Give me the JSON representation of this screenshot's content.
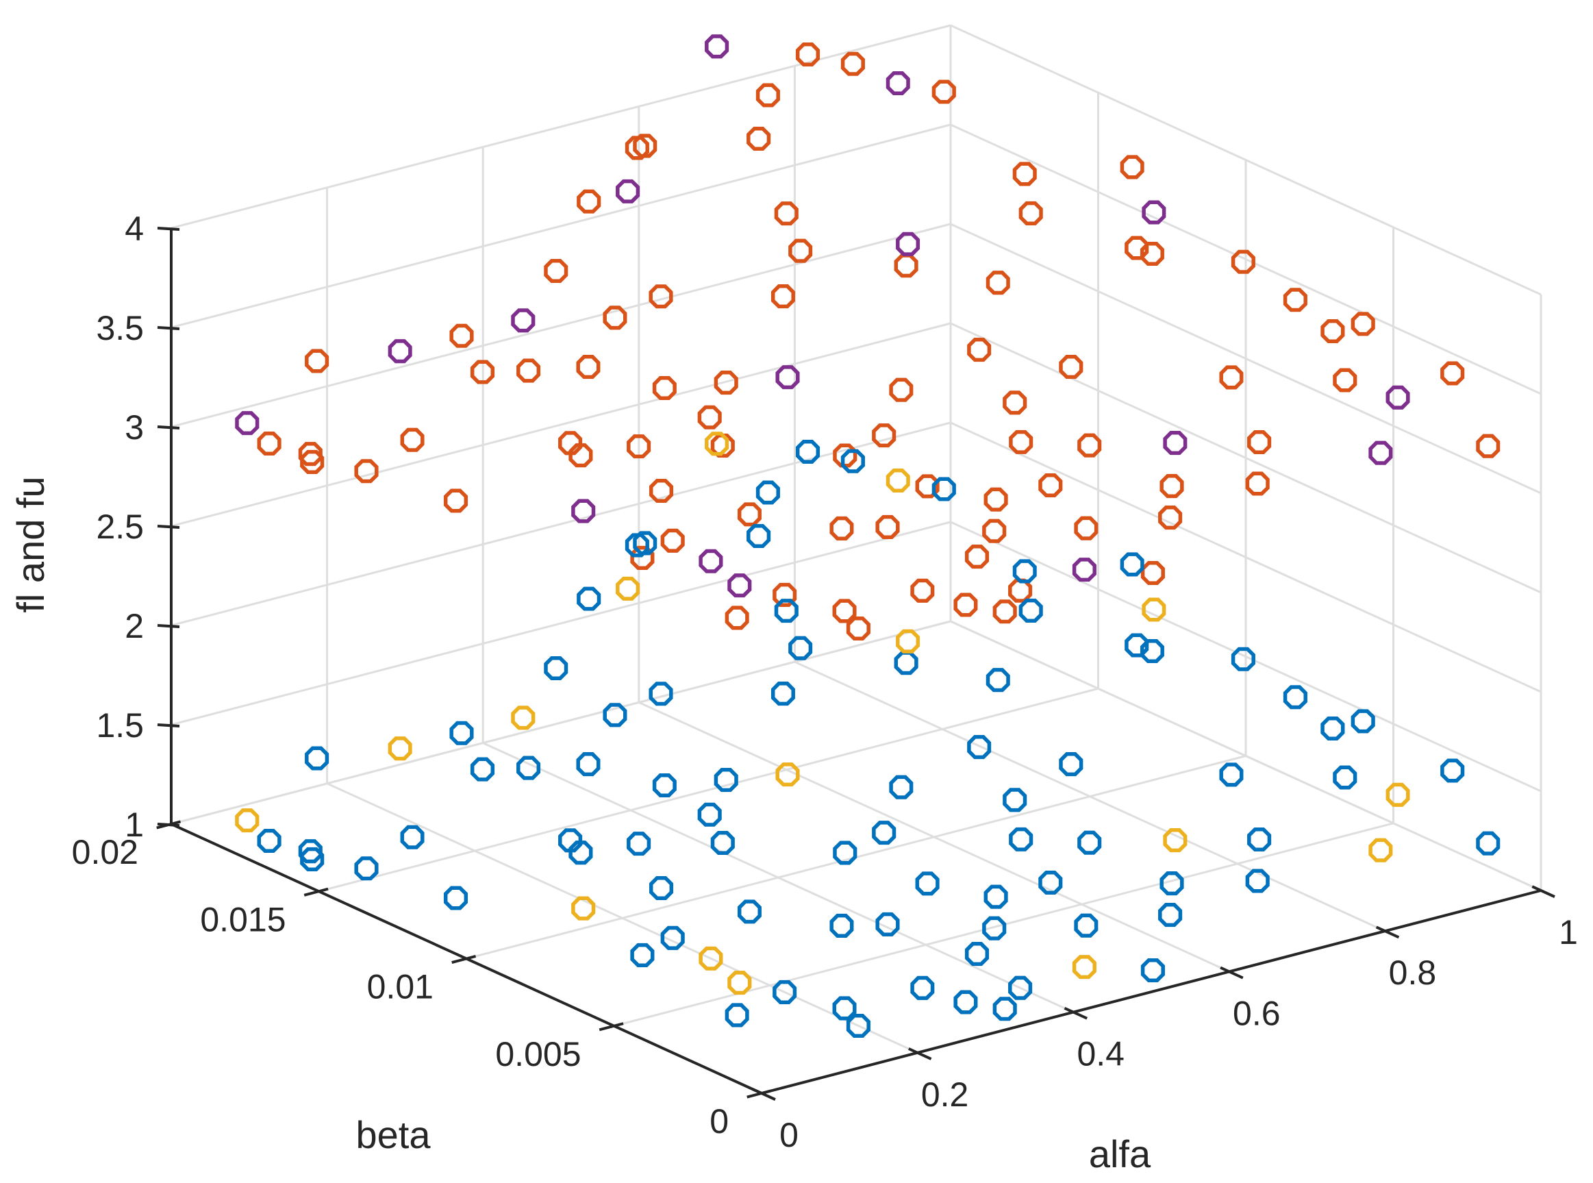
{
  "chart_data": {
    "type": "scatter3d",
    "xlabel": "alfa",
    "ylabel": "beta",
    "zlabel": "fl and fu",
    "xlim": [
      0,
      1
    ],
    "ylim": [
      0,
      0.02
    ],
    "zlim": [
      1,
      4
    ],
    "x_ticks": [
      0,
      0.2,
      0.4,
      0.6,
      0.8,
      1
    ],
    "x_tick_labels": [
      "0",
      "0.2",
      "0.4",
      "0.6",
      "0.8",
      "1"
    ],
    "y_ticks": [
      0,
      0.005,
      0.01,
      0.015,
      0.02
    ],
    "y_tick_labels": [
      "0",
      "0.005",
      "0.01",
      "0.015",
      "0.02"
    ],
    "z_ticks": [
      1,
      1.5,
      2,
      2.5,
      3,
      3.5,
      4
    ],
    "z_tick_labels": [
      "1",
      "1.5",
      "2",
      "2.5",
      "3",
      "3.5",
      "4"
    ],
    "grid": true,
    "colors": {
      "fu_main": "#D95319",
      "fu_alt": "#7E2F8E",
      "fl_main": "#0072BD",
      "fl_alt": "#EDB120",
      "axis": "#262626",
      "grid": "#DEDEDE"
    },
    "points": [
      {
        "alfa": 0.033,
        "beta": 0.0183,
        "fl": 1.1,
        "fu": 3.1,
        "alt": true
      },
      {
        "alfa": 0.05,
        "beta": 0.018,
        "fl": 1.0,
        "fu": 3.0,
        "alt": false
      },
      {
        "alfa": 0.052,
        "beta": 0.0166,
        "fl": 1.0,
        "fu": 3.0,
        "alt": false
      },
      {
        "alfa": 0.065,
        "beta": 0.017,
        "fl": 1.0,
        "fu": 3.0,
        "alt": false
      },
      {
        "alfa": 0.08,
        "beta": 0.0155,
        "fl": 1.0,
        "fu": 3.0,
        "alt": false
      },
      {
        "alfa": 0.12,
        "beta": 0.015,
        "fl": 1.15,
        "fu": 3.15,
        "alt": false
      },
      {
        "alfa": 0.1,
        "beta": 0.013,
        "fl": 1.0,
        "fu": 3.0,
        "alt": false
      },
      {
        "alfa": 0.18,
        "beta": 0.017,
        "fl": 1.4,
        "fu": 3.4,
        "alt": true
      },
      {
        "alfa": 0.21,
        "beta": 0.015,
        "fl": 1.4,
        "fu": 3.4,
        "alt": false
      },
      {
        "alfa": 0.25,
        "beta": 0.0145,
        "fl": 1.4,
        "fu": 3.4,
        "alt": false
      },
      {
        "alfa": 0.23,
        "beta": 0.0122,
        "fl": 1.15,
        "fu": 3.15,
        "alt": false
      },
      {
        "alfa": 0.15,
        "beta": 0.008,
        "fl": 1.0,
        "fu": 3.0,
        "alt": false
      },
      {
        "alfa": 0.12,
        "beta": 0.004,
        "fl": 1.0,
        "fu": 3.0,
        "alt": false
      },
      {
        "alfa": 0.15,
        "beta": 0.01,
        "fl": 1.1,
        "fu": 3.1,
        "alt": true
      },
      {
        "alfa": 0.17,
        "beta": 0.0075,
        "fl": 1.1,
        "fu": 3.1,
        "alt": false
      },
      {
        "alfa": 0.18,
        "beta": 0.0055,
        "fl": 1.0,
        "fu": 3.0,
        "alt": true
      },
      {
        "alfa": 0.2,
        "beta": 0.0045,
        "fl": 1.0,
        "fu": 3.0,
        "alt": false
      },
      {
        "alfa": 0.2,
        "beta": 0.002,
        "fl": 1.0,
        "fu": 3.0,
        "alt": false
      },
      {
        "alfa": 0.22,
        "beta": 0.003,
        "fl": 1.0,
        "fu": 3.0,
        "alt": false
      },
      {
        "alfa": 0.2,
        "beta": 0.007,
        "fl": 1.0,
        "fu": 3.0,
        "alt": true
      },
      {
        "alfa": 0.19,
        "beta": 0.0115,
        "fl": 1.3,
        "fu": 3.3,
        "alt": false
      },
      {
        "alfa": 0.24,
        "beta": 0.0105,
        "fl": 1.3,
        "fu": 3.3,
        "alt": false
      },
      {
        "alfa": 0.27,
        "beta": 0.013,
        "fl": 1.5,
        "fu": 3.5,
        "alt": false
      },
      {
        "alfa": 0.25,
        "beta": 0.01,
        "fl": 1.1,
        "fu": 3.1,
        "alt": false
      },
      {
        "alfa": 0.28,
        "beta": 0.0078,
        "fl": 1.1,
        "fu": 3.1,
        "alt": false
      },
      {
        "alfa": 0.33,
        "beta": 0.012,
        "fl": 1.4,
        "fu": 3.4,
        "alt": false
      },
      {
        "alfa": 0.35,
        "beta": 0.011,
        "fl": 1.3,
        "fu": 3.3,
        "alt": false
      },
      {
        "alfa": 0.31,
        "beta": 0.0095,
        "fl": 1.3,
        "fu": 3.3,
        "alt": false
      },
      {
        "alfa": 0.33,
        "beta": 0.006,
        "fl": 1.1,
        "fu": 3.1,
        "alt": false
      },
      {
        "alfa": 0.37,
        "beta": 0.0055,
        "fl": 1.1,
        "fu": 3.1,
        "alt": false
      },
      {
        "alfa": 0.39,
        "beta": 0.003,
        "fl": 1.1,
        "fu": 3.1,
        "alt": false
      },
      {
        "alfa": 0.32,
        "beta": 0.003,
        "fl": 1.0,
        "fu": 3.0,
        "alt": false
      },
      {
        "alfa": 0.33,
        "beta": 0.0018,
        "fl": 1.0,
        "fu": 3.0,
        "alt": false
      },
      {
        "alfa": 0.35,
        "beta": 0.001,
        "fl": 1.0,
        "fu": 3.0,
        "alt": false
      },
      {
        "alfa": 0.4,
        "beta": 0.0018,
        "fl": 1.0,
        "fu": 3.0,
        "alt": false
      },
      {
        "alfa": 0.41,
        "beta": 0.008,
        "fl": 1.25,
        "fu": 3.25,
        "alt": false
      },
      {
        "alfa": 0.39,
        "beta": 0.0115,
        "fl": 1.4,
        "fu": 3.4,
        "alt": false
      },
      {
        "alfa": 0.45,
        "beta": 0.011,
        "fl": 1.4,
        "fu": 3.4,
        "alt": true
      },
      {
        "alfa": 0.42,
        "beta": 0.0145,
        "fl": 1.6,
        "fu": 3.6,
        "alt": false
      },
      {
        "alfa": 0.38,
        "beta": 0.015,
        "fl": 1.5,
        "fu": 3.5,
        "alt": false
      },
      {
        "alfa": 0.46,
        "beta": 0.018,
        "fl": 1.8,
        "fu": 3.8,
        "alt": false
      },
      {
        "alfa": 0.51,
        "beta": 0.018,
        "fl": 1.8,
        "fu": 3.8,
        "alt": true
      },
      {
        "alfa": 0.57,
        "beta": 0.019,
        "fl": 1.9,
        "fu": 3.9,
        "alt": false
      },
      {
        "alfa": 0.46,
        "beta": 0.008,
        "fl": 1.3,
        "fu": 3.3,
        "alt": false
      },
      {
        "alfa": 0.44,
        "beta": 0.006,
        "fl": 1.2,
        "fu": 3.2,
        "alt": false
      },
      {
        "alfa": 0.45,
        "beta": 0.004,
        "fl": 1.1,
        "fu": 3.1,
        "alt": false
      },
      {
        "alfa": 0.49,
        "beta": 0.005,
        "fl": 1.15,
        "fu": 3.15,
        "alt": false
      },
      {
        "alfa": 0.49,
        "beta": 0.002,
        "fl": 1.0,
        "fu": 3.0,
        "alt": true
      },
      {
        "alfa": 0.53,
        "beta": 0.003,
        "fl": 1.1,
        "fu": 3.1,
        "alt": false
      },
      {
        "alfa": 0.54,
        "beta": 0.001,
        "fl": 1.0,
        "fu": 3.0,
        "alt": false
      },
      {
        "alfa": 0.56,
        "beta": 0.006,
        "fl": 1.3,
        "fu": 3.3,
        "alt": false
      },
      {
        "alfa": 0.52,
        "beta": 0.009,
        "fl": 1.4,
        "fu": 3.4,
        "alt": false
      },
      {
        "alfa": 0.59,
        "beta": 0.007,
        "fl": 1.4,
        "fu": 3.4,
        "alt": false
      },
      {
        "alfa": 0.61,
        "beta": 0.005,
        "fl": 1.3,
        "fu": 3.3,
        "alt": false
      },
      {
        "alfa": 0.62,
        "beta": 0.009,
        "fl": 1.5,
        "fu": 3.5,
        "alt": false
      },
      {
        "alfa": 0.64,
        "beta": 0.012,
        "fl": 1.7,
        "fu": 3.7,
        "alt": false
      },
      {
        "alfa": 0.6,
        "beta": 0.015,
        "fl": 1.8,
        "fu": 3.8,
        "alt": false
      },
      {
        "alfa": 0.64,
        "beta": 0.017,
        "fl": 2.0,
        "fu": 4.0,
        "alt": false
      },
      {
        "alfa": 0.69,
        "beta": 0.018,
        "fl": 2.1,
        "fu": 4.1,
        "alt": false
      },
      {
        "alfa": 0.7,
        "beta": 0.02,
        "fl": 2.2,
        "fu": 4.2,
        "alt": true
      },
      {
        "alfa": 0.76,
        "beta": 0.0185,
        "fl": 2.2,
        "fu": 4.2,
        "alt": false
      },
      {
        "alfa": 0.78,
        "beta": 0.0175,
        "fl": 2.2,
        "fu": 4.2,
        "alt": false
      },
      {
        "alfa": 0.8,
        "beta": 0.0165,
        "fl": 2.15,
        "fu": 4.15,
        "alt": true
      },
      {
        "alfa": 0.84,
        "beta": 0.016,
        "fl": 2.1,
        "fu": 4.1,
        "alt": false
      },
      {
        "alfa": 0.83,
        "beta": 0.013,
        "fl": 1.9,
        "fu": 3.9,
        "alt": false
      },
      {
        "alfa": 0.8,
        "beta": 0.012,
        "fl": 1.8,
        "fu": 3.8,
        "alt": false
      },
      {
        "alfa": 0.72,
        "beta": 0.011,
        "fl": 1.6,
        "fu": 3.6,
        "alt": false
      },
      {
        "alfa": 0.68,
        "beta": 0.013,
        "fl": 1.7,
        "fu": 3.7,
        "alt": true
      },
      {
        "alfa": 0.7,
        "beta": 0.008,
        "fl": 1.4,
        "fu": 3.4,
        "alt": false
      },
      {
        "alfa": 0.72,
        "beta": 0.005,
        "fl": 1.2,
        "fu": 3.2,
        "alt": true
      },
      {
        "alfa": 0.75,
        "beta": 0.003,
        "fl": 1.1,
        "fu": 3.1,
        "alt": false
      },
      {
        "alfa": 0.79,
        "beta": 0.004,
        "fl": 1.2,
        "fu": 3.2,
        "alt": false
      },
      {
        "alfa": 0.83,
        "beta": 0.006,
        "fl": 1.35,
        "fu": 3.35,
        "alt": false
      },
      {
        "alfa": 0.88,
        "beta": 0.01,
        "fl": 1.65,
        "fu": 3.65,
        "alt": false
      },
      {
        "alfa": 0.92,
        "beta": 0.011,
        "fl": 1.75,
        "fu": 3.75,
        "alt": true
      },
      {
        "alfa": 0.94,
        "beta": 0.0085,
        "fl": 1.65,
        "fu": 3.65,
        "alt": false
      },
      {
        "alfa": 0.95,
        "beta": 0.007,
        "fl": 1.55,
        "fu": 3.55,
        "alt": false
      },
      {
        "alfa": 0.96,
        "beta": 0.006,
        "fl": 1.45,
        "fu": 3.45,
        "alt": false
      },
      {
        "alfa": 0.9,
        "beta": 0.004,
        "fl": 1.4,
        "fu": 3.4,
        "alt": false
      },
      {
        "alfa": 0.93,
        "beta": 0.003,
        "fl": 1.35,
        "fu": 3.35,
        "alt": true
      },
      {
        "alfa": 0.97,
        "beta": 0.001,
        "fl": 1.2,
        "fu": 3.2,
        "alt": false
      },
      {
        "alfa": 1.0,
        "beta": 0.003,
        "fl": 1.4,
        "fu": 3.4,
        "alt": false
      },
      {
        "alfa": 0.98,
        "beta": 0.0055,
        "fl": 1.5,
        "fu": 3.5,
        "alt": false
      },
      {
        "alfa": 0.87,
        "beta": 0.002,
        "fl": 1.2,
        "fu": 3.2,
        "alt": true
      },
      {
        "alfa": 0.93,
        "beta": 0.012,
        "fl": 1.9,
        "fu": 3.9,
        "alt": false
      },
      {
        "alfa": 0.86,
        "beta": 0.01,
        "fl": 1.7,
        "fu": 3.7,
        "alt": false
      },
      {
        "alfa": 0.56,
        "beta": 0.019,
        "fl": 1.9,
        "fu": 3.9,
        "alt": false
      },
      {
        "alfa": 0.58,
        "beta": 0.014,
        "fl": 1.7,
        "fu": 3.7,
        "alt": false
      },
      {
        "alfa": 0.52,
        "beta": 0.013,
        "fl": 1.6,
        "fu": 3.6,
        "alt": false
      },
      {
        "alfa": 0.38,
        "beta": 0.017,
        "fl": 1.6,
        "fu": 3.6,
        "alt": false
      },
      {
        "alfa": 0.3,
        "beta": 0.016,
        "fl": 1.5,
        "fu": 3.5,
        "alt": true
      },
      {
        "alfa": 0.24,
        "beta": 0.0165,
        "fl": 1.45,
        "fu": 3.45,
        "alt": false
      },
      {
        "alfa": 0.13,
        "beta": 0.0185,
        "fl": 1.3,
        "fu": 3.3,
        "alt": false
      },
      {
        "alfa": 0.56,
        "beta": 0.005,
        "fl": 1.15,
        "fu": 3.15,
        "alt": false
      },
      {
        "alfa": 0.6,
        "beta": 0.002,
        "fl": 1.15,
        "fu": 3.15,
        "alt": false
      },
      {
        "alfa": 0.64,
        "beta": 0.003,
        "fl": 1.2,
        "fu": 3.2,
        "alt": false
      }
    ]
  }
}
